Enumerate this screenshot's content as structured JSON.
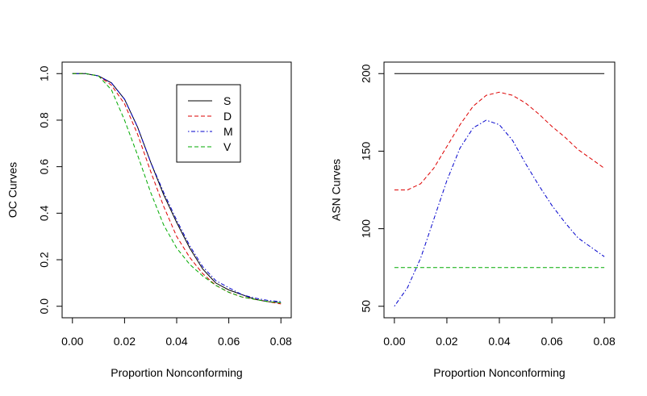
{
  "chart_data": [
    {
      "type": "line",
      "xlabel": "Proportion Nonconforming",
      "ylabel": "OC Curves",
      "xlim": [
        0.0,
        0.08
      ],
      "ylim": [
        0.0,
        1.0
      ],
      "x_ticks": [
        {
          "value": 0.0,
          "label": "0.00"
        },
        {
          "value": 0.02,
          "label": "0.02"
        },
        {
          "value": 0.04,
          "label": "0.04"
        },
        {
          "value": 0.06,
          "label": "0.06"
        },
        {
          "value": 0.08,
          "label": "0.08"
        }
      ],
      "y_ticks": [
        {
          "value": 0.0,
          "label": "0.0"
        },
        {
          "value": 0.2,
          "label": "0.2"
        },
        {
          "value": 0.4,
          "label": "0.4"
        },
        {
          "value": 0.6,
          "label": "0.6"
        },
        {
          "value": 0.8,
          "label": "0.8"
        },
        {
          "value": 1.0,
          "label": "1.0"
        }
      ],
      "legend": {
        "placement": "top-right"
      },
      "x": [
        0.0,
        0.005,
        0.01,
        0.015,
        0.02,
        0.025,
        0.03,
        0.035,
        0.04,
        0.045,
        0.05,
        0.055,
        0.06,
        0.065,
        0.07,
        0.075,
        0.08
      ],
      "series": [
        {
          "name": "S",
          "color": "#000000",
          "dash": "solid",
          "values": [
            1.0,
            1.0,
            0.99,
            0.96,
            0.89,
            0.77,
            0.62,
            0.48,
            0.36,
            0.25,
            0.16,
            0.1,
            0.07,
            0.05,
            0.03,
            0.02,
            0.015
          ]
        },
        {
          "name": "D",
          "color": "#dd0000",
          "dash": "dashed",
          "values": [
            1.0,
            1.0,
            0.99,
            0.95,
            0.87,
            0.74,
            0.58,
            0.43,
            0.3,
            0.21,
            0.14,
            0.09,
            0.06,
            0.04,
            0.03,
            0.02,
            0.01
          ]
        },
        {
          "name": "M",
          "color": "#0000cc",
          "dash": "dotdash",
          "values": [
            1.0,
            1.0,
            0.99,
            0.96,
            0.89,
            0.77,
            0.62,
            0.49,
            0.37,
            0.26,
            0.17,
            0.11,
            0.08,
            0.05,
            0.035,
            0.025,
            0.02
          ]
        },
        {
          "name": "V",
          "color": "#00aa00",
          "dash": "dashed",
          "values": [
            1.0,
            1.0,
            0.99,
            0.93,
            0.8,
            0.65,
            0.49,
            0.35,
            0.25,
            0.18,
            0.13,
            0.09,
            0.06,
            0.04,
            0.03,
            0.02,
            0.015
          ]
        }
      ]
    },
    {
      "type": "line",
      "xlabel": "Proportion Nonconforming",
      "ylabel": "ASN Curves",
      "xlim": [
        0.0,
        0.08
      ],
      "ylim": [
        50,
        200
      ],
      "x_ticks": [
        {
          "value": 0.0,
          "label": "0.00"
        },
        {
          "value": 0.02,
          "label": "0.02"
        },
        {
          "value": 0.04,
          "label": "0.04"
        },
        {
          "value": 0.06,
          "label": "0.06"
        },
        {
          "value": 0.08,
          "label": "0.08"
        }
      ],
      "y_ticks": [
        {
          "value": 50,
          "label": "50"
        },
        {
          "value": 100,
          "label": "100"
        },
        {
          "value": 150,
          "label": "150"
        },
        {
          "value": 200,
          "label": "200"
        }
      ],
      "x": [
        0.0,
        0.005,
        0.01,
        0.015,
        0.02,
        0.025,
        0.03,
        0.035,
        0.04,
        0.045,
        0.05,
        0.055,
        0.06,
        0.065,
        0.07,
        0.075,
        0.08
      ],
      "series": [
        {
          "name": "S",
          "color": "#000000",
          "dash": "solid",
          "values": [
            200,
            200,
            200,
            200,
            200,
            200,
            200,
            200,
            200,
            200,
            200,
            200,
            200,
            200,
            200,
            200,
            200
          ]
        },
        {
          "name": "D",
          "color": "#dd0000",
          "dash": "dashed",
          "values": [
            125,
            125,
            129,
            139,
            153,
            167,
            179,
            186,
            188,
            186,
            181,
            174,
            166,
            159,
            151,
            145,
            139
          ]
        },
        {
          "name": "M",
          "color": "#0000cc",
          "dash": "dotdash",
          "values": [
            50,
            62,
            81,
            106,
            131,
            152,
            165,
            170,
            167,
            157,
            142,
            128,
            115,
            104,
            94,
            88,
            82
          ]
        },
        {
          "name": "V",
          "color": "#00aa00",
          "dash": "dashed",
          "values": [
            75,
            75,
            75,
            75,
            75,
            75,
            75,
            75,
            75,
            75,
            75,
            75,
            75,
            75,
            75,
            75,
            75
          ]
        }
      ]
    }
  ]
}
